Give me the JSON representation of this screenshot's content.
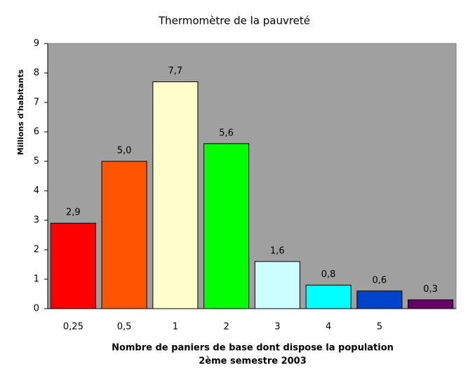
{
  "chart_data": {
    "type": "bar",
    "title": "Thermomètre de la pauvreté",
    "x_label": [
      "Nombre de paniers de base dont dispose la population",
      "2ème semestre 2003"
    ],
    "y_label": "Millions d'habitants",
    "categories": [
      "0,25",
      "0,5",
      "1",
      "2",
      "3",
      "4",
      "5",
      null
    ],
    "values": [
      2.9,
      5.0,
      7.7,
      5.6,
      1.6,
      0.8,
      0.6,
      0.3
    ],
    "value_labels": [
      "2,9",
      "5,0",
      "7,7",
      "5,6",
      "1,6",
      "0,8",
      "0,6",
      "0,3"
    ],
    "colors": [
      "#ff0000",
      "#ff5500",
      "#ffffcc",
      "#00ff00",
      "#ccffff",
      "#00ffff",
      "#0044cc",
      "#660066"
    ],
    "ylim": [
      0,
      9
    ],
    "yticks": [
      0,
      1,
      2,
      3,
      4,
      5,
      6,
      7,
      8,
      9
    ],
    "grid": false
  }
}
